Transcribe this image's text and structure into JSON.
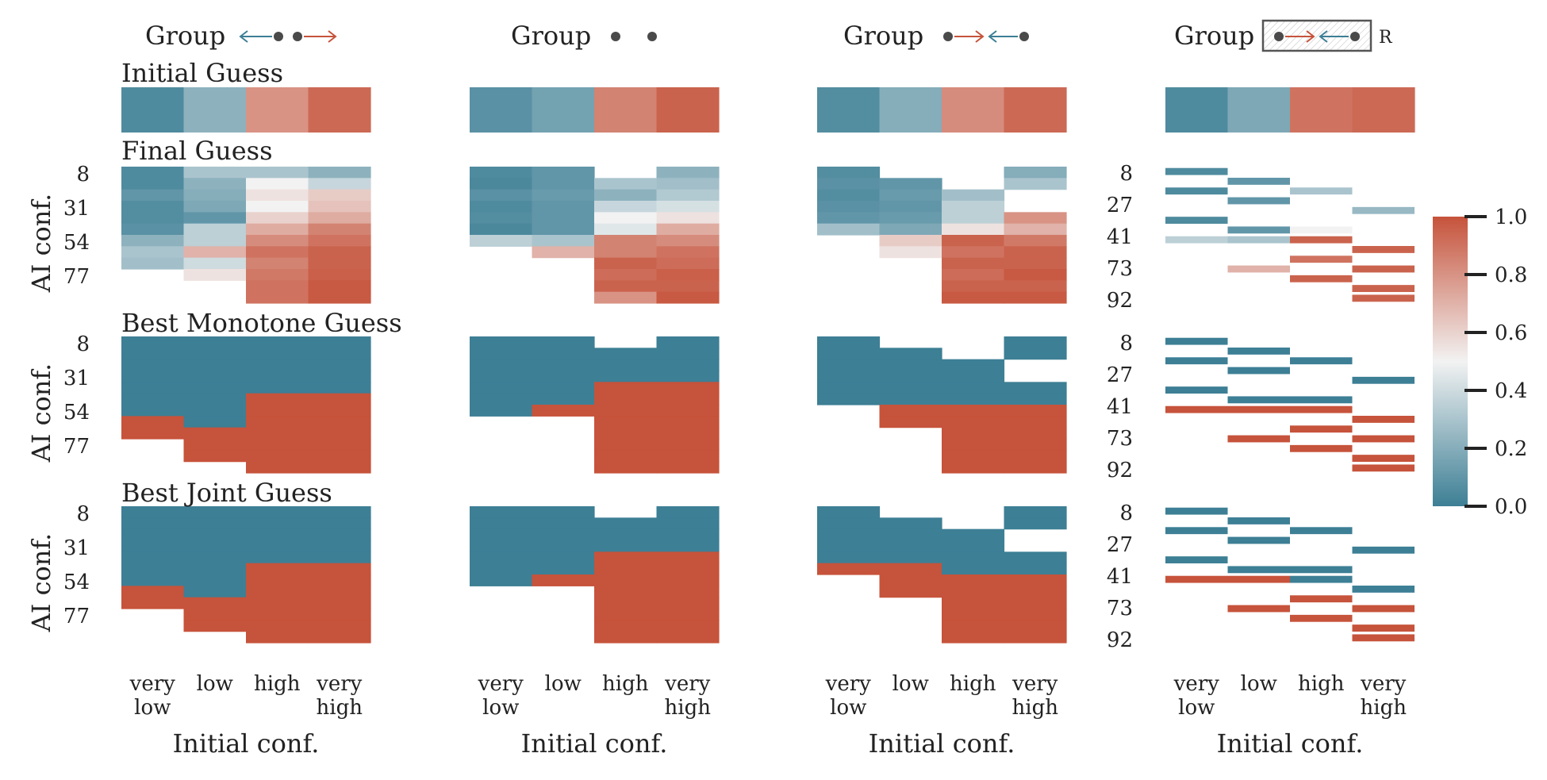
{
  "colors": {
    "low": "#3d7f95",
    "mid": "#f2f2f2",
    "high": "#c6533b",
    "frame": "#555555",
    "hatch": "#c8c8c8",
    "text": "#222222"
  },
  "chart_data": {
    "type": "heatmap",
    "row_titles": [
      "Initial Guess",
      "Final Guess",
      "Best Monotone Guess",
      "Best Joint Guess"
    ],
    "group_word": "Group",
    "groups": [
      {
        "name": "group-1",
        "arrow_pattern": "left-blue-dot-dot-right-red"
      },
      {
        "name": "group-2",
        "arrow_pattern": "dot-dot"
      },
      {
        "name": "group-3",
        "arrow_pattern": "dot-right-red-left-blue-dot"
      },
      {
        "name": "group-4",
        "arrow_pattern": "boxed-dot-right-red-left-blue-dot",
        "suffix": "R"
      }
    ],
    "x_tick_labels": [
      [
        "very",
        "low"
      ],
      [
        "low"
      ],
      [
        "high"
      ],
      [
        "very",
        "high"
      ]
    ],
    "xlabel": "Initial conf.",
    "ylabel": "AI conf.",
    "y_ticks_standard": [
      "8",
      "31",
      "54",
      "77"
    ],
    "y_ticks_fourth": [
      "8",
      "27",
      "41",
      "73",
      "92"
    ],
    "colorbar": {
      "range": [
        0.0,
        1.0
      ],
      "ticks": [
        "0.0",
        "0.2",
        "0.4",
        "0.6",
        "0.8",
        "1.0"
      ]
    },
    "ai_conf_bins": 12,
    "initial_guess": [
      [
        0.05,
        0.22,
        0.8,
        0.93
      ],
      [
        0.08,
        0.15,
        0.85,
        0.95
      ],
      [
        0.06,
        0.2,
        0.82,
        0.93
      ],
      [
        0.05,
        0.18,
        0.9,
        0.93
      ]
    ],
    "final_guess": [
      [
        [
          0.05,
          0.3,
          0.3,
          0.22
        ],
        [
          0.05,
          0.22,
          0.5,
          0.38
        ],
        [
          0.1,
          0.2,
          0.55,
          0.62
        ],
        [
          0.06,
          0.18,
          0.5,
          0.65
        ],
        [
          0.06,
          0.1,
          0.6,
          0.72
        ],
        [
          0.08,
          0.35,
          0.72,
          0.85
        ],
        [
          0.22,
          0.35,
          0.82,
          0.9
        ],
        [
          0.3,
          0.7,
          0.9,
          0.95
        ],
        [
          0.28,
          0.4,
          0.85,
          0.95
        ],
        [
          null,
          0.55,
          0.88,
          0.96
        ],
        [
          null,
          null,
          0.9,
          0.98
        ],
        [
          null,
          null,
          0.9,
          0.98
        ]
      ],
      [
        [
          0.05,
          0.1,
          null,
          0.22
        ],
        [
          0.04,
          0.1,
          0.3,
          0.28
        ],
        [
          0.08,
          0.12,
          0.22,
          0.32
        ],
        [
          0.05,
          0.1,
          0.38,
          0.42
        ],
        [
          0.06,
          0.1,
          0.5,
          0.55
        ],
        [
          0.04,
          0.1,
          0.45,
          0.72
        ],
        [
          0.35,
          0.3,
          0.85,
          0.82
        ],
        [
          null,
          0.7,
          0.85,
          0.9
        ],
        [
          null,
          null,
          0.95,
          0.92
        ],
        [
          null,
          null,
          0.92,
          0.96
        ],
        [
          null,
          null,
          0.95,
          0.95
        ],
        [
          null,
          null,
          0.8,
          0.98
        ]
      ],
      [
        [
          0.06,
          null,
          null,
          0.2
        ],
        [
          0.08,
          0.1,
          null,
          0.3
        ],
        [
          0.06,
          0.12,
          0.28,
          null
        ],
        [
          0.08,
          0.1,
          0.35,
          null
        ],
        [
          0.1,
          0.12,
          0.35,
          0.8
        ],
        [
          0.28,
          0.18,
          0.55,
          0.7
        ],
        [
          null,
          0.62,
          0.95,
          0.88
        ],
        [
          null,
          0.55,
          0.9,
          0.95
        ],
        [
          null,
          null,
          0.95,
          0.95
        ],
        [
          null,
          null,
          0.92,
          0.98
        ],
        [
          null,
          null,
          0.95,
          0.95
        ],
        [
          null,
          null,
          0.98,
          0.98
        ]
      ],
      [
        [
          0.05,
          null,
          null,
          null
        ],
        [
          null,
          0.1,
          null,
          null
        ],
        [
          0.05,
          null,
          0.3,
          null
        ],
        [
          null,
          0.1,
          null,
          null
        ],
        [
          null,
          null,
          null,
          0.25
        ],
        [
          0.05,
          null,
          null,
          null
        ],
        [
          null,
          0.1,
          0.5,
          null
        ],
        [
          0.35,
          0.3,
          0.95,
          null
        ],
        [
          null,
          null,
          null,
          0.95
        ],
        [
          null,
          null,
          0.9,
          null
        ],
        [
          null,
          0.7,
          null,
          0.95
        ],
        [
          null,
          null,
          0.95,
          null
        ],
        [
          null,
          null,
          null,
          0.95
        ],
        [
          null,
          null,
          null,
          0.95
        ]
      ]
    ],
    "best_monotone_guess": [
      [
        [
          0,
          0,
          0,
          0
        ],
        [
          0,
          0,
          0,
          0
        ],
        [
          0,
          0,
          0,
          0
        ],
        [
          0,
          0,
          0,
          0
        ],
        [
          0,
          0,
          0,
          0
        ],
        [
          0,
          0,
          1,
          1
        ],
        [
          0,
          0,
          1,
          1
        ],
        [
          1,
          0,
          1,
          1
        ],
        [
          1,
          1,
          1,
          1
        ],
        [
          null,
          1,
          1,
          1
        ],
        [
          null,
          1,
          1,
          1
        ],
        [
          null,
          null,
          1,
          1
        ]
      ],
      [
        [
          0,
          0,
          null,
          0
        ],
        [
          0,
          0,
          0,
          0
        ],
        [
          0,
          0,
          0,
          0
        ],
        [
          0,
          0,
          0,
          0
        ],
        [
          0,
          0,
          1,
          1
        ],
        [
          0,
          0,
          1,
          1
        ],
        [
          0,
          1,
          1,
          1
        ],
        [
          null,
          null,
          1,
          1
        ],
        [
          null,
          null,
          1,
          1
        ],
        [
          null,
          null,
          1,
          1
        ],
        [
          null,
          null,
          1,
          1
        ],
        [
          null,
          null,
          1,
          1
        ]
      ],
      [
        [
          0,
          null,
          null,
          0
        ],
        [
          0,
          0,
          null,
          0
        ],
        [
          0,
          0,
          0,
          null
        ],
        [
          0,
          0,
          0,
          null
        ],
        [
          0,
          0,
          0,
          0
        ],
        [
          0,
          0,
          0,
          0
        ],
        [
          null,
          1,
          1,
          1
        ],
        [
          null,
          1,
          1,
          1
        ],
        [
          null,
          null,
          1,
          1
        ],
        [
          null,
          null,
          1,
          1
        ],
        [
          null,
          null,
          1,
          1
        ],
        [
          null,
          null,
          1,
          1
        ]
      ],
      [
        [
          0,
          null,
          null,
          null
        ],
        [
          null,
          0,
          null,
          null
        ],
        [
          0,
          null,
          0,
          null
        ],
        [
          null,
          0,
          null,
          null
        ],
        [
          null,
          null,
          null,
          0
        ],
        [
          0,
          null,
          null,
          null
        ],
        [
          null,
          0,
          0,
          null
        ],
        [
          1,
          1,
          1,
          null
        ],
        [
          null,
          null,
          null,
          1
        ],
        [
          null,
          null,
          1,
          null
        ],
        [
          null,
          1,
          null,
          1
        ],
        [
          null,
          null,
          1,
          null
        ],
        [
          null,
          null,
          null,
          1
        ],
        [
          null,
          null,
          null,
          1
        ]
      ]
    ],
    "best_joint_guess": [
      [
        [
          0,
          0,
          0,
          0
        ],
        [
          0,
          0,
          0,
          0
        ],
        [
          0,
          0,
          0,
          0
        ],
        [
          0,
          0,
          0,
          0
        ],
        [
          0,
          0,
          0,
          0
        ],
        [
          0,
          0,
          1,
          1
        ],
        [
          0,
          0,
          1,
          1
        ],
        [
          1,
          0,
          1,
          1
        ],
        [
          1,
          1,
          1,
          1
        ],
        [
          null,
          1,
          1,
          1
        ],
        [
          null,
          1,
          1,
          1
        ],
        [
          null,
          null,
          1,
          1
        ]
      ],
      [
        [
          0,
          0,
          null,
          0
        ],
        [
          0,
          0,
          0,
          0
        ],
        [
          0,
          0,
          0,
          0
        ],
        [
          0,
          0,
          0,
          0
        ],
        [
          0,
          0,
          1,
          1
        ],
        [
          0,
          0,
          1,
          1
        ],
        [
          0,
          1,
          1,
          1
        ],
        [
          null,
          null,
          1,
          1
        ],
        [
          null,
          null,
          1,
          1
        ],
        [
          null,
          null,
          1,
          1
        ],
        [
          null,
          null,
          1,
          1
        ],
        [
          null,
          null,
          1,
          1
        ]
      ],
      [
        [
          0,
          null,
          null,
          0
        ],
        [
          0,
          0,
          null,
          0
        ],
        [
          0,
          0,
          0,
          null
        ],
        [
          0,
          0,
          0,
          null
        ],
        [
          0,
          0,
          0,
          0
        ],
        [
          1,
          1,
          0,
          0
        ],
        [
          null,
          1,
          1,
          1
        ],
        [
          null,
          1,
          1,
          1
        ],
        [
          null,
          null,
          1,
          1
        ],
        [
          null,
          null,
          1,
          1
        ],
        [
          null,
          null,
          1,
          1
        ],
        [
          null,
          null,
          1,
          1
        ]
      ],
      [
        [
          0,
          null,
          null,
          null
        ],
        [
          null,
          0,
          null,
          null
        ],
        [
          0,
          null,
          0,
          null
        ],
        [
          null,
          0,
          null,
          null
        ],
        [
          null,
          null,
          null,
          0
        ],
        [
          0,
          null,
          null,
          null
        ],
        [
          null,
          0,
          0,
          null
        ],
        [
          1,
          1,
          0,
          null
        ],
        [
          null,
          null,
          null,
          0
        ],
        [
          null,
          null,
          1,
          null
        ],
        [
          null,
          1,
          null,
          1
        ],
        [
          null,
          null,
          1,
          null
        ],
        [
          null,
          null,
          null,
          1
        ],
        [
          null,
          null,
          null,
          1
        ]
      ]
    ]
  }
}
